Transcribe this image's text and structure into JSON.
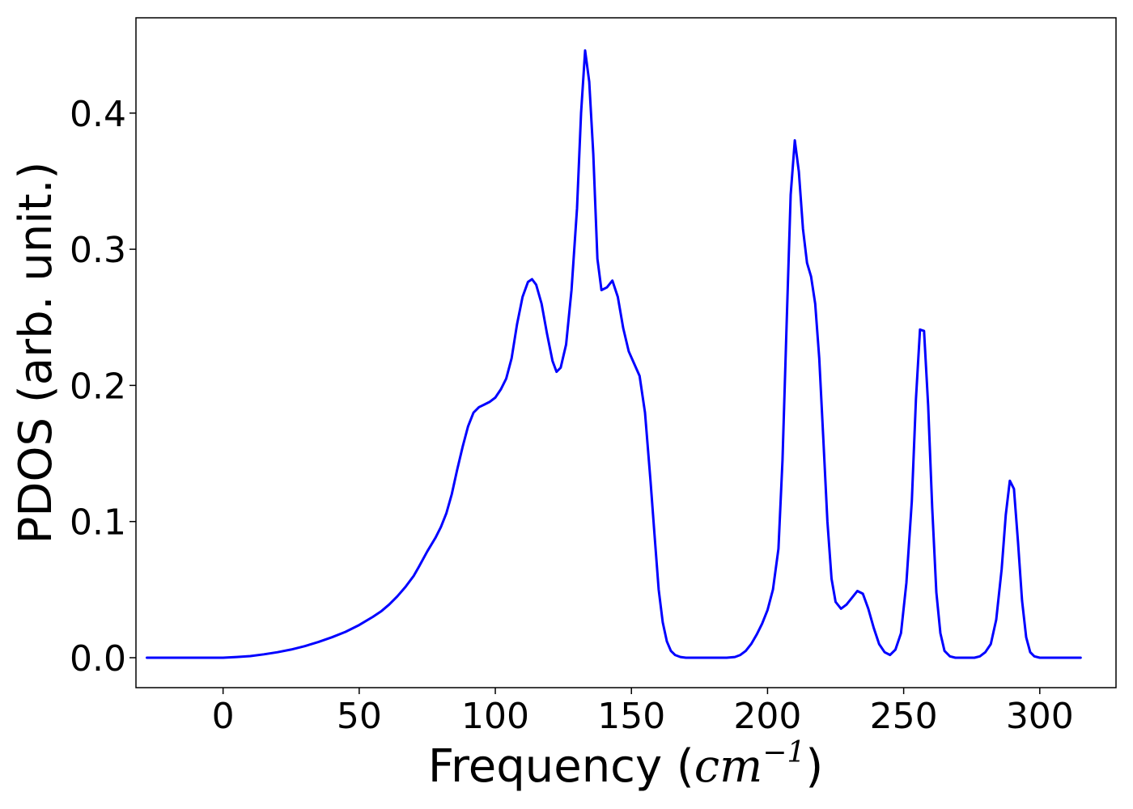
{
  "chart_data": {
    "type": "line",
    "title": "",
    "xlabel": "Frequency",
    "xlabel_unit_prefix": "(",
    "xlabel_unit_base": "cm",
    "xlabel_unit_exp": "−1",
    "xlabel_unit_suffix": ")",
    "ylabel": "PDOS (arb. unit.)",
    "xlim": [
      -32,
      328
    ],
    "ylim": [
      -0.022,
      0.47
    ],
    "xticks": [
      0,
      50,
      100,
      150,
      200,
      250,
      300
    ],
    "xtick_labels": [
      "0",
      "50",
      "100",
      "150",
      "200",
      "250",
      "300"
    ],
    "yticks": [
      0.0,
      0.1,
      0.2,
      0.3,
      0.4
    ],
    "ytick_labels": [
      "0.0",
      "0.1",
      "0.2",
      "0.3",
      "0.4"
    ],
    "grid": false,
    "legend": "none",
    "series": [
      {
        "color": "#0000ff",
        "points": [
          [
            -28,
            0.0
          ],
          [
            0,
            0.0
          ],
          [
            5,
            0.0005
          ],
          [
            10,
            0.0012
          ],
          [
            15,
            0.0025
          ],
          [
            20,
            0.004
          ],
          [
            25,
            0.006
          ],
          [
            30,
            0.0085
          ],
          [
            35,
            0.0115
          ],
          [
            40,
            0.015
          ],
          [
            45,
            0.019
          ],
          [
            50,
            0.024
          ],
          [
            55,
            0.03
          ],
          [
            58,
            0.034
          ],
          [
            61,
            0.039
          ],
          [
            64,
            0.045
          ],
          [
            67,
            0.052
          ],
          [
            70,
            0.06
          ],
          [
            72,
            0.067
          ],
          [
            75,
            0.078
          ],
          [
            78,
            0.088
          ],
          [
            80,
            0.096
          ],
          [
            82,
            0.106
          ],
          [
            84,
            0.12
          ],
          [
            86,
            0.138
          ],
          [
            88,
            0.155
          ],
          [
            90,
            0.17
          ],
          [
            92,
            0.18
          ],
          [
            94,
            0.184
          ],
          [
            96,
            0.186
          ],
          [
            98,
            0.188
          ],
          [
            100,
            0.191
          ],
          [
            102,
            0.197
          ],
          [
            104,
            0.205
          ],
          [
            106,
            0.22
          ],
          [
            108,
            0.245
          ],
          [
            110,
            0.265
          ],
          [
            112,
            0.276
          ],
          [
            113.5,
            0.278
          ],
          [
            115,
            0.274
          ],
          [
            117,
            0.26
          ],
          [
            119,
            0.238
          ],
          [
            121,
            0.218
          ],
          [
            122.5,
            0.21
          ],
          [
            124,
            0.213
          ],
          [
            126,
            0.23
          ],
          [
            128,
            0.27
          ],
          [
            130,
            0.33
          ],
          [
            131.5,
            0.4
          ],
          [
            133,
            0.446
          ],
          [
            134.5,
            0.423
          ],
          [
            136,
            0.37
          ],
          [
            137.5,
            0.293
          ],
          [
            139,
            0.27
          ],
          [
            141,
            0.272
          ],
          [
            143,
            0.277
          ],
          [
            145,
            0.265
          ],
          [
            147,
            0.242
          ],
          [
            149,
            0.225
          ],
          [
            151,
            0.216
          ],
          [
            153,
            0.207
          ],
          [
            155,
            0.18
          ],
          [
            157,
            0.13
          ],
          [
            158.5,
            0.09
          ],
          [
            160,
            0.05
          ],
          [
            161.5,
            0.026
          ],
          [
            163,
            0.012
          ],
          [
            164.5,
            0.005
          ],
          [
            166,
            0.002
          ],
          [
            168,
            0.0005
          ],
          [
            170,
            0.0
          ],
          [
            185,
            0.0
          ],
          [
            188,
            0.0005
          ],
          [
            190,
            0.002
          ],
          [
            192,
            0.005
          ],
          [
            194,
            0.01
          ],
          [
            196,
            0.017
          ],
          [
            198,
            0.025
          ],
          [
            200,
            0.035
          ],
          [
            202,
            0.05
          ],
          [
            204,
            0.08
          ],
          [
            205.5,
            0.145
          ],
          [
            207,
            0.245
          ],
          [
            208.5,
            0.34
          ],
          [
            210,
            0.38
          ],
          [
            211.5,
            0.357
          ],
          [
            213,
            0.315
          ],
          [
            214.5,
            0.29
          ],
          [
            216,
            0.28
          ],
          [
            217.5,
            0.26
          ],
          [
            219,
            0.22
          ],
          [
            220.5,
            0.16
          ],
          [
            222,
            0.1
          ],
          [
            223.5,
            0.058
          ],
          [
            225,
            0.041
          ],
          [
            227,
            0.036
          ],
          [
            229,
            0.039
          ],
          [
            231,
            0.044
          ],
          [
            233,
            0.049
          ],
          [
            235,
            0.047
          ],
          [
            237,
            0.036
          ],
          [
            239,
            0.022
          ],
          [
            241,
            0.01
          ],
          [
            243,
            0.004
          ],
          [
            245,
            0.002
          ],
          [
            247,
            0.006
          ],
          [
            249,
            0.018
          ],
          [
            251,
            0.055
          ],
          [
            253,
            0.115
          ],
          [
            254.5,
            0.19
          ],
          [
            256,
            0.241
          ],
          [
            257.5,
            0.24
          ],
          [
            259,
            0.185
          ],
          [
            260.5,
            0.11
          ],
          [
            262,
            0.048
          ],
          [
            263.5,
            0.018
          ],
          [
            265,
            0.005
          ],
          [
            267,
            0.001
          ],
          [
            269,
            0.0
          ],
          [
            276,
            0.0
          ],
          [
            278,
            0.001
          ],
          [
            280,
            0.004
          ],
          [
            282,
            0.01
          ],
          [
            284,
            0.028
          ],
          [
            286,
            0.065
          ],
          [
            287.5,
            0.105
          ],
          [
            289,
            0.13
          ],
          [
            290.5,
            0.124
          ],
          [
            292,
            0.085
          ],
          [
            293.5,
            0.042
          ],
          [
            295,
            0.015
          ],
          [
            296.5,
            0.004
          ],
          [
            298,
            0.001
          ],
          [
            300,
            0.0
          ],
          [
            315,
            0.0
          ]
        ]
      }
    ]
  }
}
